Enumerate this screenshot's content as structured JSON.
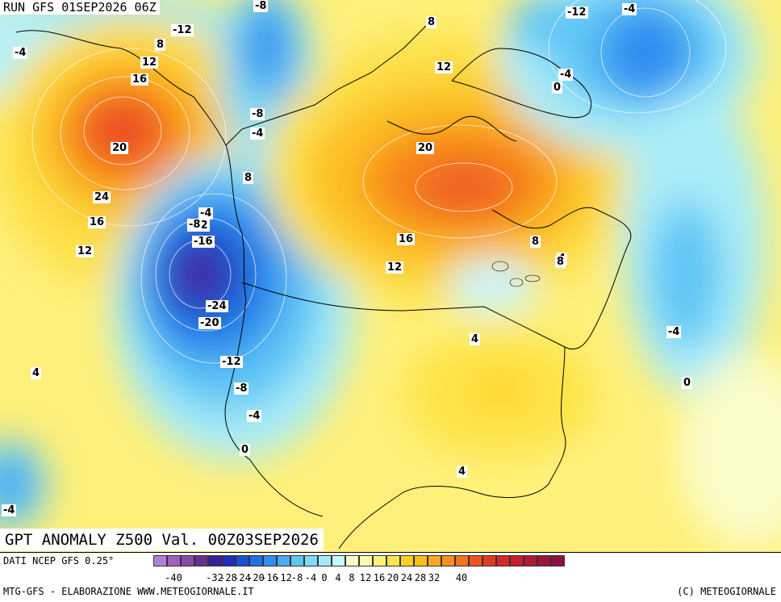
{
  "header": {
    "run": "RUN GFS 01SEP2026 06Z"
  },
  "map": {
    "title": "GPT ANOMALY Z500 Val. 00Z03SEP2026",
    "contour_labels": [
      "-8",
      "-4",
      "-12",
      "8",
      "12",
      "16",
      "20",
      "24",
      "16",
      "12",
      "8",
      "-4",
      "-8",
      "-12",
      "-16",
      "-24",
      "-20",
      "-12",
      "-8",
      "-4",
      "0",
      "4",
      "-4",
      "-8",
      "-12",
      "-4",
      "8",
      "12",
      "20",
      "16",
      "12",
      "8",
      "4",
      "4",
      "4",
      "-4",
      "0",
      "-4",
      "0",
      "-4",
      "8"
    ],
    "background_color": "#ffffff"
  },
  "colorbar": {
    "tick_labels": [
      "-40",
      "-32",
      "-28",
      "-24",
      "-20",
      "-16",
      "-12",
      "-8",
      "-4",
      "0",
      "4",
      "8",
      "12",
      "16",
      "20",
      "24",
      "28",
      "32",
      "40"
    ],
    "colors": [
      "#b57fd6",
      "#a35ec2",
      "#8e47aa",
      "#6b2f94",
      "#3c1f9e",
      "#1f2fb8",
      "#1a4fd6",
      "#1f6fe8",
      "#2e8ff0",
      "#48aaf5",
      "#5ec6f5",
      "#7ddcf7",
      "#a4ebf8",
      "#cbf5fa",
      "#fafcc8",
      "#fffbaa",
      "#fff27a",
      "#fee44a",
      "#fdd022",
      "#fcbf18",
      "#fba91a",
      "#f98f1c",
      "#f5721e",
      "#ef5420",
      "#e23a22",
      "#d42a26",
      "#c41f2c",
      "#b01a35",
      "#9e153a",
      "#8c1240"
    ]
  },
  "footer": {
    "source": "DATI NCEP GFS 0.25°",
    "credit": "MTG-GFS - ELABORAZIONE WWW.METEOGIORNALE.IT",
    "copyright": "(C) METEOGIORNALE"
  }
}
